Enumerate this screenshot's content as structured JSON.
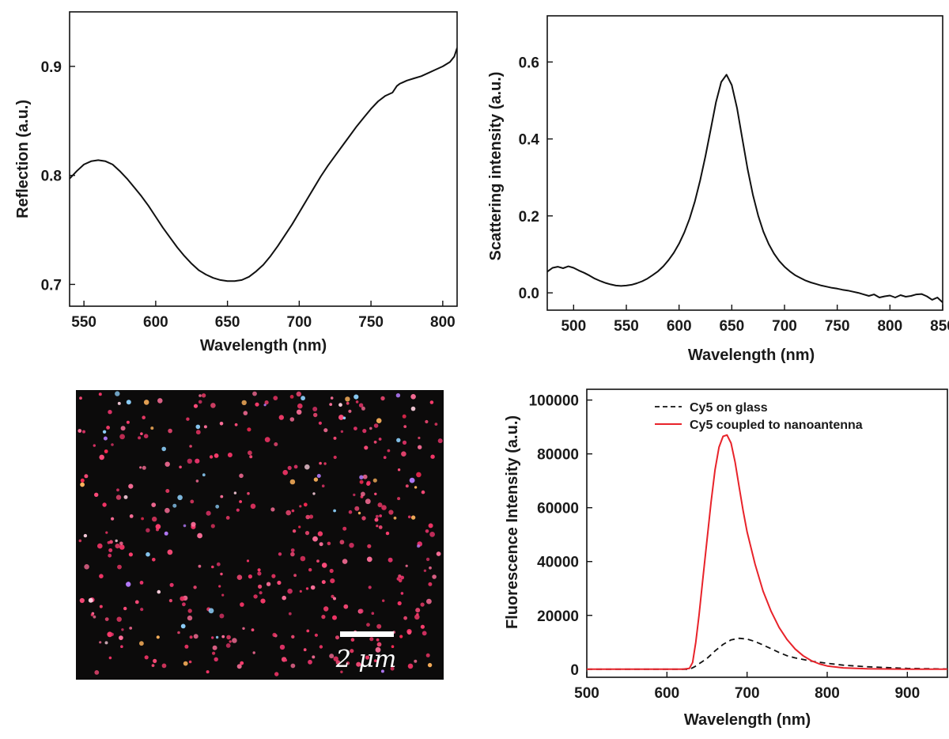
{
  "chart_data": [
    {
      "id": "reflection",
      "type": "line",
      "title": "",
      "xlabel": "Wavelength (nm)",
      "ylabel": "Reflection (a.u.)",
      "xlim": [
        540,
        810
      ],
      "ylim": [
        0.68,
        0.95
      ],
      "xticks": [
        550,
        600,
        650,
        700,
        750,
        800
      ],
      "yticks": [
        0.7,
        0.8,
        0.9
      ],
      "xtick_labels": [
        "550",
        "600",
        "650",
        "700",
        "750",
        "800"
      ],
      "ytick_labels": [
        "0.7",
        "0.8",
        "0.9"
      ],
      "series": [
        {
          "name": "Reflection",
          "color": "#111111",
          "dash": false,
          "x": [
            540,
            545,
            550,
            555,
            560,
            565,
            570,
            575,
            580,
            585,
            590,
            595,
            600,
            605,
            610,
            615,
            620,
            625,
            630,
            635,
            640,
            645,
            650,
            655,
            660,
            665,
            670,
            675,
            680,
            685,
            690,
            695,
            700,
            705,
            710,
            715,
            720,
            725,
            730,
            735,
            740,
            745,
            750,
            755,
            760,
            765,
            768,
            770,
            775,
            780,
            785,
            790,
            795,
            800,
            805,
            808,
            810
          ],
          "y": [
            0.797,
            0.804,
            0.81,
            0.813,
            0.814,
            0.813,
            0.81,
            0.804,
            0.797,
            0.789,
            0.781,
            0.772,
            0.762,
            0.752,
            0.743,
            0.734,
            0.726,
            0.719,
            0.713,
            0.709,
            0.706,
            0.704,
            0.703,
            0.703,
            0.704,
            0.707,
            0.712,
            0.718,
            0.726,
            0.735,
            0.745,
            0.755,
            0.766,
            0.777,
            0.788,
            0.799,
            0.809,
            0.818,
            0.827,
            0.836,
            0.845,
            0.853,
            0.861,
            0.868,
            0.873,
            0.876,
            0.882,
            0.884,
            0.887,
            0.889,
            0.891,
            0.894,
            0.897,
            0.9,
            0.904,
            0.909,
            0.917
          ]
        }
      ]
    },
    {
      "id": "scattering",
      "type": "line",
      "title": "",
      "xlabel": "Wavelength (nm)",
      "ylabel": "Scattering intensity (a.u.)",
      "xlim": [
        475,
        850
      ],
      "ylim": [
        -0.045,
        0.72
      ],
      "xticks": [
        500,
        550,
        600,
        650,
        700,
        750,
        800,
        850
      ],
      "yticks": [
        0.0,
        0.2,
        0.4,
        0.6
      ],
      "xtick_labels": [
        "500",
        "550",
        "600",
        "650",
        "700",
        "750",
        "800",
        "850"
      ],
      "ytick_labels": [
        "0.0",
        "0.2",
        "0.4",
        "0.6"
      ],
      "series": [
        {
          "name": "Scattering",
          "color": "#111111",
          "dash": false,
          "x": [
            475,
            480,
            485,
            490,
            495,
            500,
            505,
            510,
            515,
            520,
            525,
            530,
            535,
            540,
            545,
            550,
            555,
            560,
            565,
            570,
            575,
            580,
            585,
            590,
            595,
            600,
            605,
            610,
            615,
            620,
            625,
            630,
            635,
            640,
            645,
            650,
            655,
            660,
            665,
            670,
            675,
            680,
            685,
            690,
            695,
            700,
            705,
            710,
            715,
            720,
            725,
            730,
            735,
            740,
            745,
            750,
            755,
            760,
            765,
            770,
            775,
            780,
            785,
            790,
            795,
            800,
            805,
            810,
            815,
            820,
            825,
            830,
            835,
            840,
            845,
            850
          ],
          "y": [
            0.055,
            0.065,
            0.068,
            0.064,
            0.069,
            0.065,
            0.058,
            0.052,
            0.045,
            0.037,
            0.031,
            0.026,
            0.022,
            0.019,
            0.018,
            0.019,
            0.021,
            0.025,
            0.03,
            0.037,
            0.046,
            0.056,
            0.069,
            0.085,
            0.104,
            0.128,
            0.157,
            0.193,
            0.238,
            0.292,
            0.355,
            0.425,
            0.495,
            0.548,
            0.567,
            0.54,
            0.48,
            0.4,
            0.322,
            0.255,
            0.201,
            0.159,
            0.127,
            0.102,
            0.083,
            0.068,
            0.056,
            0.046,
            0.039,
            0.032,
            0.027,
            0.023,
            0.019,
            0.016,
            0.013,
            0.011,
            0.008,
            0.006,
            0.003,
            0.0,
            -0.004,
            -0.008,
            -0.004,
            -0.012,
            -0.009,
            -0.007,
            -0.012,
            -0.006,
            -0.01,
            -0.008,
            -0.004,
            -0.003,
            -0.009,
            -0.018,
            -0.012,
            -0.025
          ]
        }
      ]
    },
    {
      "id": "fluorescence",
      "type": "line",
      "title": "",
      "xlabel": "Wavelength (nm)",
      "ylabel": "Fluorescence Intensity (a.u.)",
      "xlim": [
        500,
        950
      ],
      "ylim": [
        -3000,
        104000
      ],
      "xticks": [
        500,
        600,
        700,
        800,
        900
      ],
      "yticks": [
        0,
        20000,
        40000,
        60000,
        80000,
        100000
      ],
      "xtick_labels": [
        "500",
        "600",
        "700",
        "800",
        "900"
      ],
      "ytick_labels": [
        "0",
        "20000",
        "40000",
        "60000",
        "80000",
        "100000"
      ],
      "legend_position": "top-right",
      "series": [
        {
          "name": "Cy5 on glass",
          "color": "#111111",
          "dash": true,
          "x": [
            500,
            550,
            600,
            625,
            630,
            635,
            640,
            650,
            660,
            670,
            680,
            690,
            700,
            710,
            720,
            730,
            740,
            750,
            760,
            770,
            780,
            800,
            820,
            850,
            900,
            950
          ],
          "y": [
            0,
            0,
            0,
            0,
            200,
            1000,
            2000,
            4000,
            6800,
            9200,
            10900,
            11500,
            11200,
            10300,
            9000,
            7600,
            6200,
            5000,
            4200,
            3600,
            3000,
            2200,
            1500,
            900,
            300,
            100
          ]
        },
        {
          "name": "Cy5 coupled to nanoantenna",
          "color": "#e8232a",
          "dash": false,
          "x": [
            500,
            550,
            600,
            620,
            628,
            632,
            636,
            640,
            645,
            650,
            655,
            660,
            665,
            670,
            675,
            680,
            685,
            690,
            695,
            700,
            710,
            720,
            730,
            740,
            750,
            760,
            770,
            780,
            790,
            800,
            820,
            850,
            900,
            950
          ],
          "y": [
            0,
            0,
            0,
            0,
            300,
            2500,
            10000,
            20000,
            34000,
            48000,
            62000,
            74000,
            82500,
            86500,
            87000,
            84000,
            77000,
            68000,
            59000,
            51000,
            39000,
            29000,
            21500,
            15500,
            11000,
            7500,
            5000,
            3200,
            2000,
            1200,
            500,
            150,
            0,
            0
          ]
        }
      ]
    }
  ],
  "image_panel": {
    "scale_bar_label": "2 μm"
  }
}
